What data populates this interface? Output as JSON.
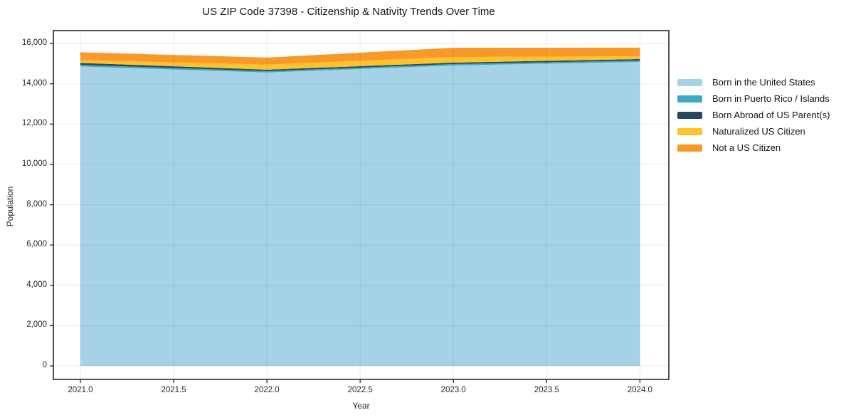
{
  "chart_data": {
    "type": "area",
    "stacked": true,
    "title": "US ZIP Code 37398 - Citizenship & Nativity Trends Over Time",
    "xlabel": "Year",
    "ylabel": "Population",
    "x": [
      2021,
      2022,
      2023,
      2024
    ],
    "series": [
      {
        "name": "Born in the United States",
        "color": "#a5d2e7",
        "values": [
          14860,
          14560,
          14910,
          15090
        ]
      },
      {
        "name": "Born in Puerto Rico / Islands",
        "color": "#41a8c2",
        "values": [
          80,
          70,
          70,
          70
        ]
      },
      {
        "name": "Born Abroad of US Parent(s)",
        "color": "#27485c",
        "values": [
          95,
          70,
          70,
          70
        ]
      },
      {
        "name": "Naturalized US Citizen",
        "color": "#fcc32d",
        "values": [
          140,
          250,
          280,
          140
        ]
      },
      {
        "name": "Not a US Citizen",
        "color": "#f8992a",
        "values": [
          390,
          350,
          460,
          425
        ]
      }
    ],
    "totals": [
      15565,
      15300,
      15790,
      15795
    ],
    "x_ticks": [
      "2021.0",
      "2021.5",
      "2022.0",
      "2022.5",
      "2023.0",
      "2023.5",
      "2024.0"
    ],
    "x_tick_values": [
      2021,
      2021.5,
      2022,
      2022.5,
      2023,
      2023.5,
      2024
    ],
    "y_ticks": [
      "0",
      "2,000",
      "4,000",
      "6,000",
      "8,000",
      "10,000",
      "12,000",
      "14,000",
      "16,000"
    ],
    "y_tick_values": [
      0,
      2000,
      4000,
      6000,
      8000,
      10000,
      12000,
      14000,
      16000
    ],
    "xlim": [
      2020.855,
      2024.155
    ],
    "ylim": [
      -670,
      16640
    ],
    "grid": true,
    "grid_over_areas": true,
    "legend_position": "right",
    "colors": {
      "spine": "#262626",
      "grid": "rgba(0,0,0,0.08)",
      "tick_text": "#262626",
      "background": "#ffffff"
    }
  }
}
